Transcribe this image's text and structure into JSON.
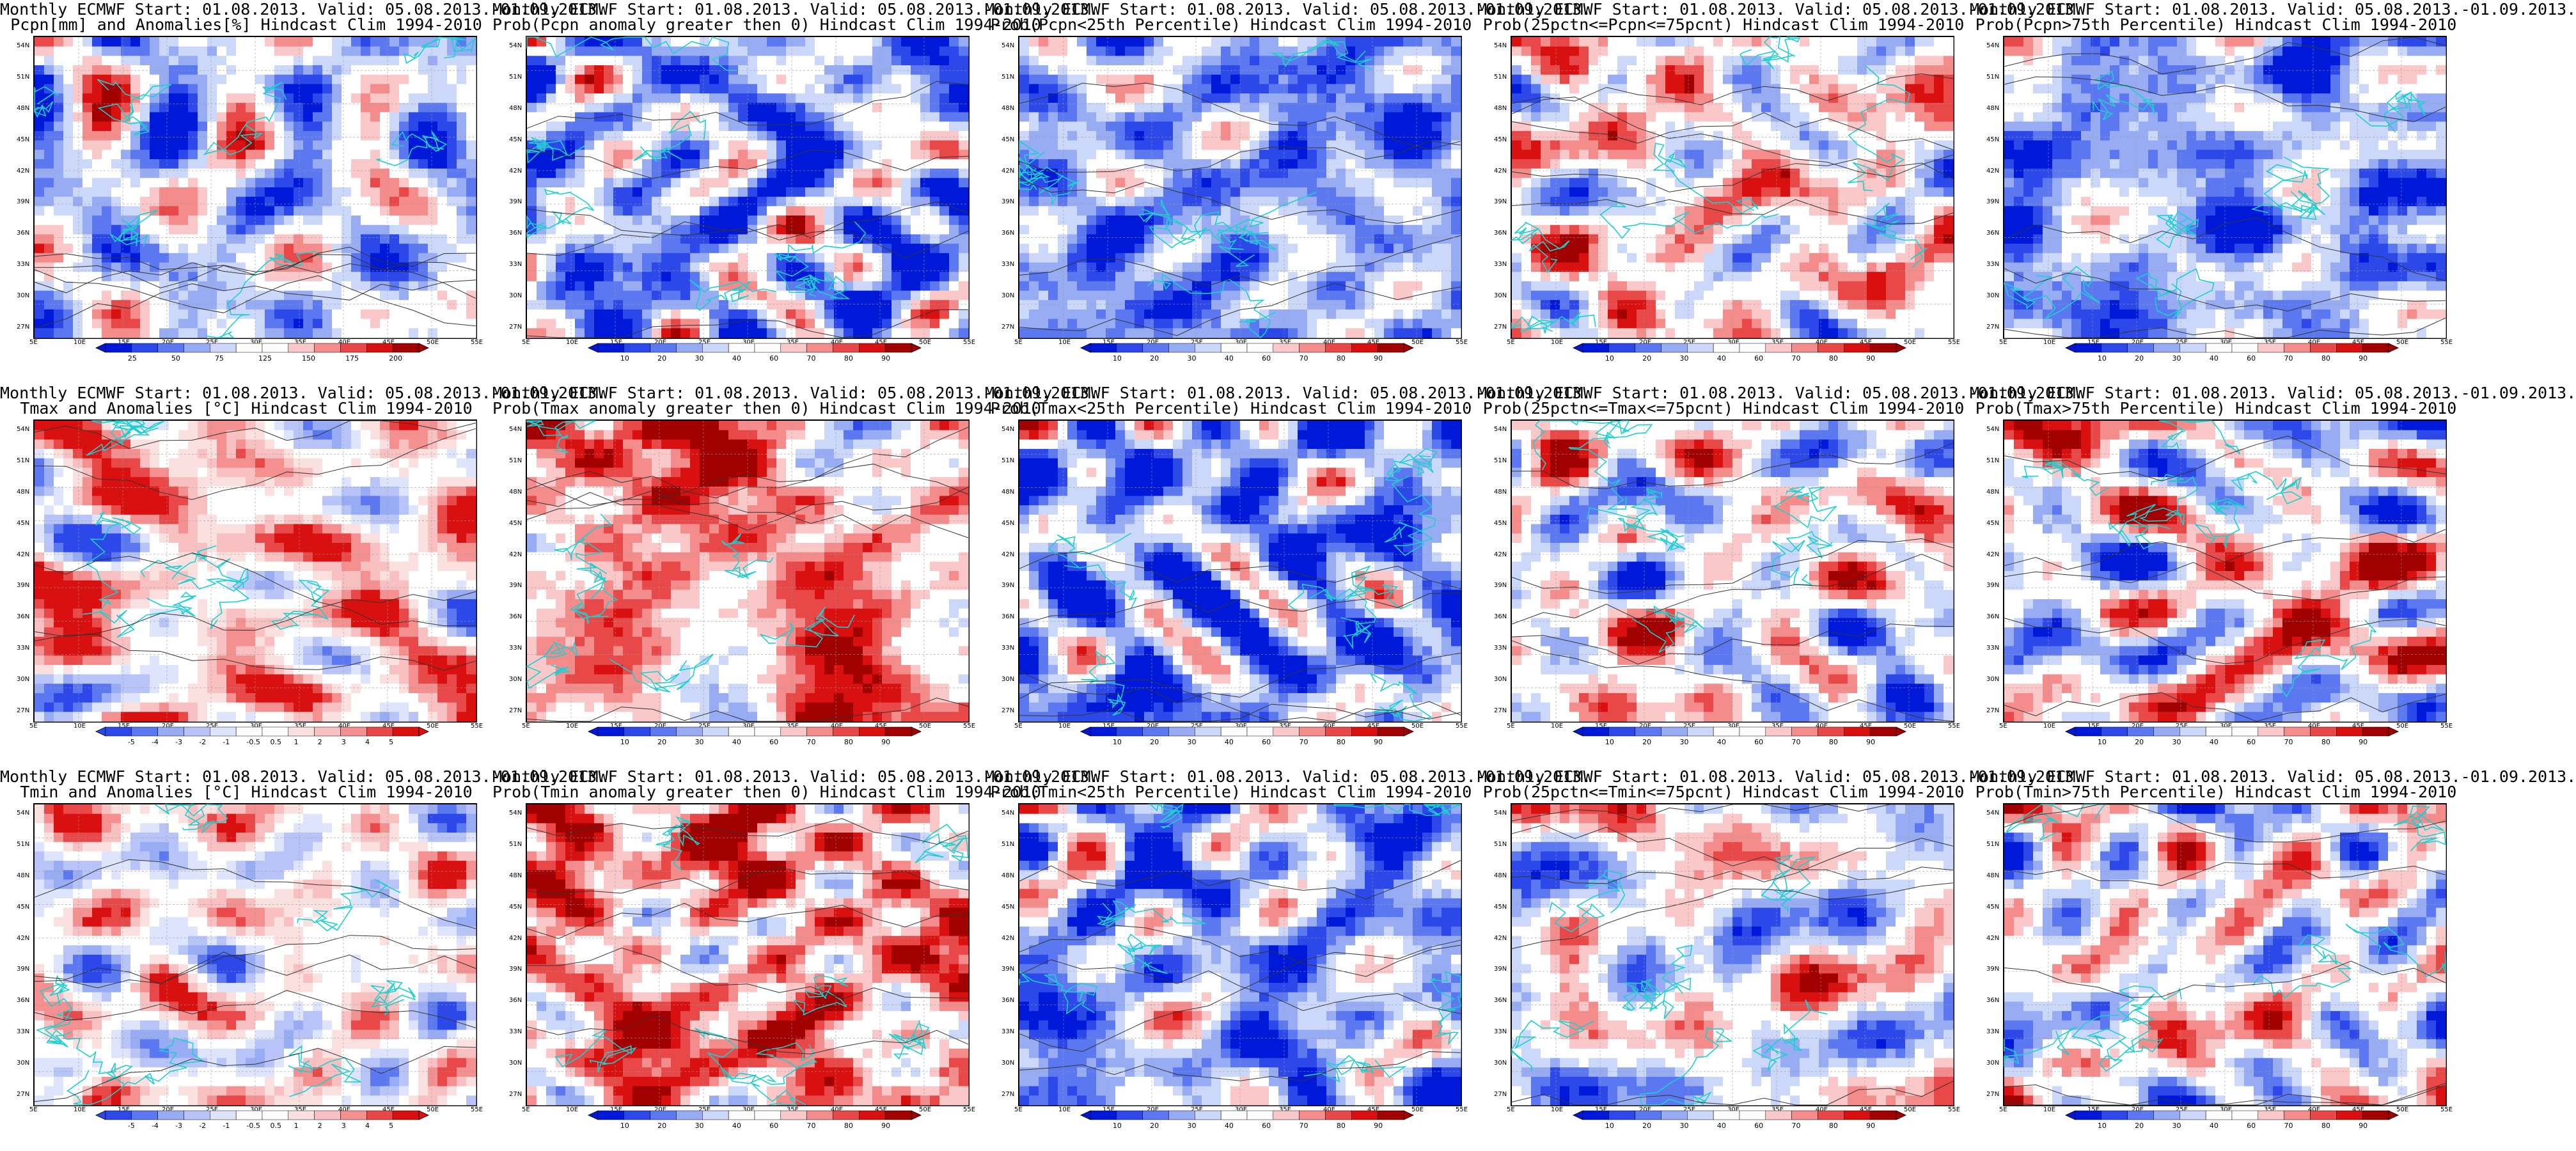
{
  "palettes": {
    "prob": [
      "#0018d8",
      "#2c48e8",
      "#5c78f0",
      "#98acf4",
      "#ccd8fa",
      "#ffffff",
      "#ffffff",
      "#fac8c8",
      "#f48c8c",
      "#e84848",
      "#d81010",
      "#a00000"
    ],
    "anom_pcpn": [
      "#0018d8",
      "#2c48e8",
      "#5c78f0",
      "#98acf4",
      "#ccd8fa",
      "#ffffff",
      "#ffffff",
      "#fac8c8",
      "#f48c8c",
      "#e84848",
      "#d81010",
      "#a00000"
    ],
    "anom_temp": [
      "#2c48e8",
      "#5c78f0",
      "#98acf4",
      "#b8c4f8",
      "#dde4fb",
      "#ffffff",
      "#ffffff",
      "#fbe0e0",
      "#f8c0c0",
      "#f49090",
      "#e84848",
      "#d81010"
    ]
  },
  "colorbars": {
    "pcpn_anom": [
      "25",
      "50",
      "75",
      "125",
      "150",
      "175",
      "200"
    ],
    "temp_anom": [
      "-5",
      "-4",
      "-3",
      "-2",
      "-1",
      "-0.5",
      "0.5",
      "1",
      "2",
      "3",
      "4",
      "5"
    ],
    "prob": [
      "10",
      "20",
      "30",
      "40",
      "60",
      "70",
      "80",
      "90"
    ]
  },
  "axes": {
    "lat_labels": [
      "54N",
      "51N",
      "48N",
      "45N",
      "42N",
      "39N",
      "36N",
      "33N",
      "30N",
      "27N"
    ],
    "lon_labels": [
      "5E",
      "10E",
      "15E",
      "20E",
      "25E",
      "30E",
      "35E",
      "40E",
      "45E",
      "50E",
      "55E"
    ]
  },
  "panels": [
    {
      "title1": "Monthly ECMWF Start: 01.08.2013. Valid: 05.08.2013.-01.09.2013.",
      "title2": "Pcpn[mm] and Anomalies[%] Hindcast Clim 1994-2010",
      "field": "pcpn_anom",
      "bias": -0.3,
      "seed": 11
    },
    {
      "title1": "Monthly ECMWF Start: 01.08.2013. Valid: 05.08.2013.-01.09.2013.",
      "title2": "Prob(Pcpn anomaly greater then 0) Hindcast Clim 1994-2010",
      "field": "prob",
      "bias": -0.55,
      "seed": 12
    },
    {
      "title1": "Monthly ECMWF Start: 01.08.2013. Valid: 05.08.2013.-01.09.2013.",
      "title2": "Prob(Pcpn<25th Percentile) Hindcast Clim 1994-2010",
      "field": "prob",
      "bias": -0.65,
      "seed": 13
    },
    {
      "title1": "Monthly ECMWF Start: 01.08.2013. Valid: 05.08.2013.-01.09.2013.",
      "title2": "Prob(25pctn<=Pcpn<=75pcnt) Hindcast Clim 1994-2010",
      "field": "prob",
      "bias": 0.1,
      "seed": 14
    },
    {
      "title1": "Monthly ECMWF Start: 01.08.2013. Valid: 05.08.2013.-01.09.2013.",
      "title2": "Prob(Pcpn>75th Percentile) Hindcast Clim 1994-2010",
      "field": "prob",
      "bias": -0.6,
      "seed": 15
    },
    {
      "title1": "Monthly ECMWF Start: 01.08.2013. Valid: 05.08.2013.-01.09.2013.",
      "title2": "Tmax and Anomalies [°C] Hindcast Clim 1994-2010",
      "field": "temp_anom",
      "bias": 0.35,
      "seed": 21
    },
    {
      "title1": "Monthly ECMWF Start: 01.08.2013. Valid: 05.08.2013.-01.09.2013.",
      "title2": "Prob(Tmax anomaly greater then 0) Hindcast Clim 1994-2010",
      "field": "prob",
      "bias": 0.5,
      "seed": 22
    },
    {
      "title1": "Monthly ECMWF Start: 01.08.2013. Valid: 05.08.2013.-01.09.2013.",
      "title2": "Prob(Tmax<25th Percentile) Hindcast Clim 1994-2010",
      "field": "prob",
      "bias": -0.7,
      "seed": 23
    },
    {
      "title1": "Monthly ECMWF Start: 01.08.2013. Valid: 05.08.2013.-01.09.2013.",
      "title2": "Prob(25pctn<=Tmax<=75pcnt) Hindcast Clim 1994-2010",
      "field": "prob",
      "bias": -0.05,
      "seed": 24
    },
    {
      "title1": "Monthly ECMWF Start: 01.08.2013. Valid: 05.08.2013.-01.09.2013.",
      "title2": "Prob(Tmax>75th Percentile) Hindcast Clim 1994-2010",
      "field": "prob",
      "bias": 0.0,
      "seed": 25
    },
    {
      "title1": "Monthly ECMWF Start: 01.08.2013. Valid: 05.08.2013.-01.09.2013.",
      "title2": "Tmin and Anomalies [°C] Hindcast Clim 1994-2010",
      "field": "temp_anom",
      "bias": 0.05,
      "seed": 31
    },
    {
      "title1": "Monthly ECMWF Start: 01.08.2013. Valid: 05.08.2013.-01.09.2013.",
      "title2": "Prob(Tmin anomaly greater then 0) Hindcast Clim 1994-2010",
      "field": "prob",
      "bias": 0.55,
      "seed": 32
    },
    {
      "title1": "Monthly ECMWF Start: 01.08.2013. Valid: 05.08.2013.-01.09.2013.",
      "title2": "Prob(Tmin<25th Percentile) Hindcast Clim 1994-2010",
      "field": "prob",
      "bias": -0.55,
      "seed": 33
    },
    {
      "title1": "Monthly ECMWF Start: 01.08.2013. Valid: 05.08.2013.-01.09.2013.",
      "title2": "Prob(25pctn<=Tmin<=75pcnt) Hindcast Clim 1994-2010",
      "field": "prob",
      "bias": -0.1,
      "seed": 34
    },
    {
      "title1": "Monthly ECMWF Start: 01.08.2013. Valid: 05.08.2013.-01.09.2013.",
      "title2": "Prob(Tmin>75th Percentile) Hindcast Clim 1994-2010",
      "field": "prob",
      "bias": -0.05,
      "seed": 35
    }
  ]
}
